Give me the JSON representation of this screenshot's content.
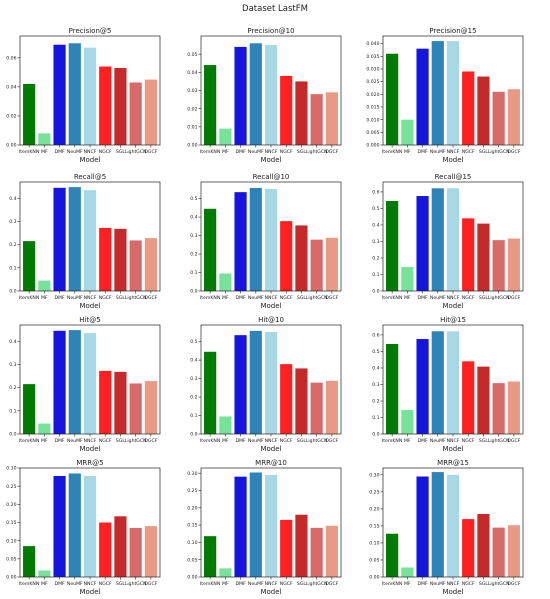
{
  "figure": {
    "title": "Dataset LastFM"
  },
  "chart_data": [
    {
      "type": "bar",
      "title": "Precision@5",
      "xlabel": "Model",
      "ylabel": "",
      "categories": [
        "ItemKNN",
        "MF",
        "DMF",
        "NeuMF",
        "NNCF",
        "NGCF",
        "SGL",
        "LightGCN",
        "DGCF"
      ],
      "values": [
        0.042,
        0.008,
        0.069,
        0.07,
        0.067,
        0.054,
        0.053,
        0.043,
        0.045
      ],
      "ylim": [
        0,
        0.075
      ],
      "yticks": [
        0,
        0.02,
        0.04,
        0.06
      ],
      "ytick_labels": [
        "0.00",
        "0.02",
        "0.04",
        "0.06"
      ],
      "colors": [
        "#007a00",
        "#77e39a",
        "#1515dd",
        "#2e84b8",
        "#a7d8e6",
        "#ff2020",
        "#c42a2a",
        "#d96a6a",
        "#e89a86"
      ]
    },
    {
      "type": "bar",
      "title": "Precision@10",
      "xlabel": "Model",
      "ylabel": "",
      "categories": [
        "ItemKNN",
        "MF",
        "DMF",
        "NeuMF",
        "NNCF",
        "NGCF",
        "SGL",
        "LightGCN",
        "DGCF"
      ],
      "values": [
        0.044,
        0.009,
        0.054,
        0.056,
        0.055,
        0.038,
        0.035,
        0.028,
        0.029
      ],
      "ylim": [
        0,
        0.06
      ],
      "yticks": [
        0,
        0.01,
        0.02,
        0.03,
        0.04,
        0.05
      ],
      "ytick_labels": [
        "0.00",
        "0.01",
        "0.02",
        "0.03",
        "0.04",
        "0.05"
      ],
      "colors": [
        "#007a00",
        "#77e39a",
        "#1515dd",
        "#2e84b8",
        "#a7d8e6",
        "#ff2020",
        "#c42a2a",
        "#d96a6a",
        "#e89a86"
      ]
    },
    {
      "type": "bar",
      "title": "Precision@15",
      "xlabel": "Model",
      "ylabel": "",
      "categories": [
        "ItemKNN",
        "MF",
        "DMF",
        "NeuMF",
        "NNCF",
        "NGCF",
        "SGL",
        "LightGCN",
        "DGCF"
      ],
      "values": [
        0.036,
        0.01,
        0.038,
        0.041,
        0.041,
        0.029,
        0.027,
        0.021,
        0.022
      ],
      "ylim": [
        0,
        0.043
      ],
      "yticks": [
        0,
        0.005,
        0.01,
        0.015,
        0.02,
        0.025,
        0.03,
        0.035,
        0.04
      ],
      "ytick_labels": [
        "0.000",
        "0.005",
        "0.010",
        "0.015",
        "0.020",
        "0.025",
        "0.030",
        "0.035",
        "0.040"
      ],
      "colors": [
        "#007a00",
        "#77e39a",
        "#1515dd",
        "#2e84b8",
        "#a7d8e6",
        "#ff2020",
        "#c42a2a",
        "#d96a6a",
        "#e89a86"
      ]
    },
    {
      "type": "bar",
      "title": "Recall@5",
      "xlabel": "Model",
      "ylabel": "",
      "categories": [
        "ItemKNN",
        "MF",
        "DMF",
        "NeuMF",
        "NNCF",
        "NGCF",
        "SGL",
        "LightGCN",
        "DGCF"
      ],
      "values": [
        0.215,
        0.045,
        0.445,
        0.448,
        0.435,
        0.272,
        0.268,
        0.218,
        0.228
      ],
      "ylim": [
        0,
        0.47
      ],
      "yticks": [
        0,
        0.1,
        0.2,
        0.3,
        0.4
      ],
      "ytick_labels": [
        "0.0",
        "0.1",
        "0.2",
        "0.3",
        "0.4"
      ],
      "colors": [
        "#007a00",
        "#77e39a",
        "#1515dd",
        "#2e84b8",
        "#a7d8e6",
        "#ff2020",
        "#c42a2a",
        "#d96a6a",
        "#e89a86"
      ]
    },
    {
      "type": "bar",
      "title": "Recall@10",
      "xlabel": "Model",
      "ylabel": "",
      "categories": [
        "ItemKNN",
        "MF",
        "DMF",
        "NeuMF",
        "NNCF",
        "NGCF",
        "SGL",
        "LightGCN",
        "DGCF"
      ],
      "values": [
        0.445,
        0.095,
        0.535,
        0.558,
        0.552,
        0.378,
        0.355,
        0.278,
        0.288
      ],
      "ylim": [
        0,
        0.59
      ],
      "yticks": [
        0,
        0.1,
        0.2,
        0.3,
        0.4,
        0.5
      ],
      "ytick_labels": [
        "0.0",
        "0.1",
        "0.2",
        "0.3",
        "0.4",
        "0.5"
      ],
      "colors": [
        "#007a00",
        "#77e39a",
        "#1515dd",
        "#2e84b8",
        "#a7d8e6",
        "#ff2020",
        "#c42a2a",
        "#d96a6a",
        "#e89a86"
      ]
    },
    {
      "type": "bar",
      "title": "Recall@15",
      "xlabel": "Model",
      "ylabel": "",
      "categories": [
        "ItemKNN",
        "MF",
        "DMF",
        "NeuMF",
        "NNCF",
        "NGCF",
        "SGL",
        "LightGCN",
        "DGCF"
      ],
      "values": [
        0.545,
        0.145,
        0.575,
        0.622,
        0.622,
        0.44,
        0.408,
        0.308,
        0.318
      ],
      "ylim": [
        0,
        0.66
      ],
      "yticks": [
        0,
        0.1,
        0.2,
        0.3,
        0.4,
        0.5,
        0.6
      ],
      "ytick_labels": [
        "0.0",
        "0.1",
        "0.2",
        "0.3",
        "0.4",
        "0.5",
        "0.6"
      ],
      "colors": [
        "#007a00",
        "#77e39a",
        "#1515dd",
        "#2e84b8",
        "#a7d8e6",
        "#ff2020",
        "#c42a2a",
        "#d96a6a",
        "#e89a86"
      ]
    },
    {
      "type": "bar",
      "title": "Hit@5",
      "xlabel": "Model",
      "ylabel": "",
      "categories": [
        "ItemKNN",
        "MF",
        "DMF",
        "NeuMF",
        "NNCF",
        "NGCF",
        "SGL",
        "LightGCN",
        "DGCF"
      ],
      "values": [
        0.215,
        0.045,
        0.445,
        0.448,
        0.435,
        0.272,
        0.268,
        0.218,
        0.228
      ],
      "ylim": [
        0,
        0.47
      ],
      "yticks": [
        0,
        0.1,
        0.2,
        0.3,
        0.4
      ],
      "ytick_labels": [
        "0.0",
        "0.1",
        "0.2",
        "0.3",
        "0.4"
      ],
      "colors": [
        "#007a00",
        "#77e39a",
        "#1515dd",
        "#2e84b8",
        "#a7d8e6",
        "#ff2020",
        "#c42a2a",
        "#d96a6a",
        "#e89a86"
      ]
    },
    {
      "type": "bar",
      "title": "Hit@10",
      "xlabel": "Model",
      "ylabel": "",
      "categories": [
        "ItemKNN",
        "MF",
        "DMF",
        "NeuMF",
        "NNCF",
        "NGCF",
        "SGL",
        "LightGCN",
        "DGCF"
      ],
      "values": [
        0.445,
        0.095,
        0.535,
        0.558,
        0.552,
        0.378,
        0.355,
        0.278,
        0.288
      ],
      "ylim": [
        0,
        0.59
      ],
      "yticks": [
        0,
        0.1,
        0.2,
        0.3,
        0.4,
        0.5
      ],
      "ytick_labels": [
        "0.0",
        "0.1",
        "0.2",
        "0.3",
        "0.4",
        "0.5"
      ],
      "colors": [
        "#007a00",
        "#77e39a",
        "#1515dd",
        "#2e84b8",
        "#a7d8e6",
        "#ff2020",
        "#c42a2a",
        "#d96a6a",
        "#e89a86"
      ]
    },
    {
      "type": "bar",
      "title": "Hit@15",
      "xlabel": "Model",
      "ylabel": "",
      "categories": [
        "ItemKNN",
        "MF",
        "DMF",
        "NeuMF",
        "NNCF",
        "NGCF",
        "SGL",
        "LightGCN",
        "DGCF"
      ],
      "values": [
        0.545,
        0.145,
        0.575,
        0.622,
        0.622,
        0.44,
        0.408,
        0.308,
        0.318
      ],
      "ylim": [
        0,
        0.66
      ],
      "yticks": [
        0,
        0.1,
        0.2,
        0.3,
        0.4,
        0.5,
        0.6
      ],
      "ytick_labels": [
        "0.0",
        "0.1",
        "0.2",
        "0.3",
        "0.4",
        "0.5",
        "0.6"
      ],
      "colors": [
        "#007a00",
        "#77e39a",
        "#1515dd",
        "#2e84b8",
        "#a7d8e6",
        "#ff2020",
        "#c42a2a",
        "#d96a6a",
        "#e89a86"
      ]
    },
    {
      "type": "bar",
      "title": "MRR@5",
      "xlabel": "Model",
      "ylabel": "",
      "categories": [
        "ItemKNN",
        "MF",
        "DMF",
        "NeuMF",
        "NNCF",
        "NGCF",
        "SGL",
        "LightGCN",
        "DGCF"
      ],
      "values": [
        0.085,
        0.018,
        0.278,
        0.285,
        0.278,
        0.15,
        0.167,
        0.135,
        0.14
      ],
      "ylim": [
        0,
        0.3
      ],
      "yticks": [
        0,
        0.05,
        0.1,
        0.15,
        0.2,
        0.25,
        0.3
      ],
      "ytick_labels": [
        "0.00",
        "0.05",
        "0.10",
        "0.15",
        "0.20",
        "0.25",
        "0.30"
      ],
      "colors": [
        "#007a00",
        "#77e39a",
        "#1515dd",
        "#2e84b8",
        "#a7d8e6",
        "#ff2020",
        "#c42a2a",
        "#d96a6a",
        "#e89a86"
      ]
    },
    {
      "type": "bar",
      "title": "MRR@10",
      "xlabel": "Model",
      "ylabel": "",
      "categories": [
        "ItemKNN",
        "MF",
        "DMF",
        "NeuMF",
        "NNCF",
        "NGCF",
        "SGL",
        "LightGCN",
        "DGCF"
      ],
      "values": [
        0.118,
        0.025,
        0.29,
        0.302,
        0.295,
        0.165,
        0.18,
        0.142,
        0.148
      ],
      "ylim": [
        0,
        0.315
      ],
      "yticks": [
        0,
        0.05,
        0.1,
        0.15,
        0.2,
        0.25,
        0.3
      ],
      "ytick_labels": [
        "0.00",
        "0.05",
        "0.10",
        "0.15",
        "0.20",
        "0.25",
        "0.30"
      ],
      "colors": [
        "#007a00",
        "#77e39a",
        "#1515dd",
        "#2e84b8",
        "#a7d8e6",
        "#ff2020",
        "#c42a2a",
        "#d96a6a",
        "#e89a86"
      ]
    },
    {
      "type": "bar",
      "title": "MRR@15",
      "xlabel": "Model",
      "ylabel": "",
      "categories": [
        "ItemKNN",
        "MF",
        "DMF",
        "NeuMF",
        "NNCF",
        "NGCF",
        "SGL",
        "LightGCN",
        "DGCF"
      ],
      "values": [
        0.127,
        0.028,
        0.295,
        0.308,
        0.3,
        0.17,
        0.185,
        0.145,
        0.152
      ],
      "ylim": [
        0,
        0.32
      ],
      "yticks": [
        0,
        0.05,
        0.1,
        0.15,
        0.2,
        0.25,
        0.3
      ],
      "ytick_labels": [
        "0.00",
        "0.05",
        "0.10",
        "0.15",
        "0.20",
        "0.25",
        "0.30"
      ],
      "colors": [
        "#007a00",
        "#77e39a",
        "#1515dd",
        "#2e84b8",
        "#a7d8e6",
        "#ff2020",
        "#c42a2a",
        "#d96a6a",
        "#e89a86"
      ]
    }
  ]
}
